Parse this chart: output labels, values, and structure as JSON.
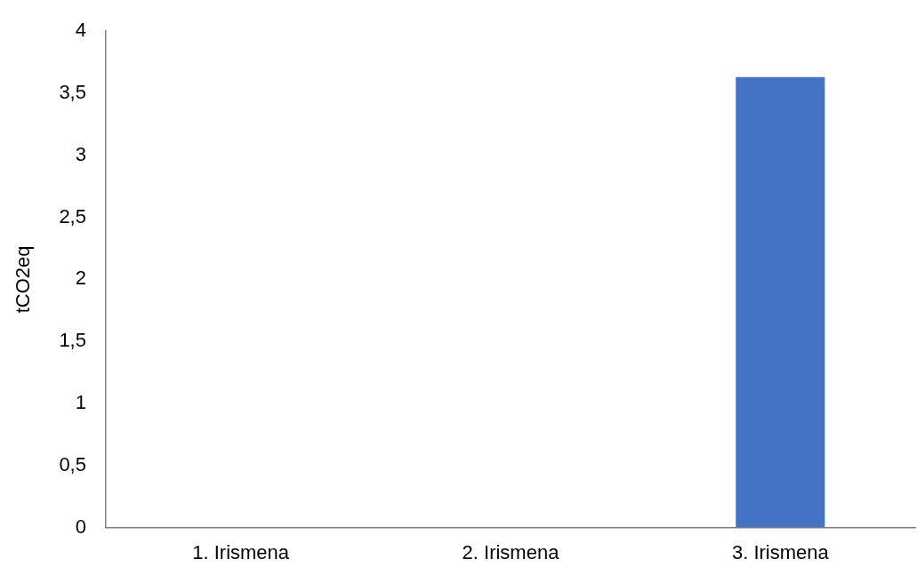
{
  "chart_data": {
    "type": "bar",
    "ylabel": "tCO2eq",
    "categories": [
      "1. Irismena",
      "2. Irismena",
      "3. Irismena"
    ],
    "values": [
      0,
      0,
      3.63
    ],
    "color": "#4472c4",
    "ylim": [
      0,
      4
    ],
    "yticks": [
      0,
      {
        "value": 0.5,
        "label": "0,5"
      },
      1,
      {
        "value": 1.5,
        "label": "1,5"
      },
      2,
      {
        "value": 2.5,
        "label": "2,5"
      },
      3,
      {
        "value": 3.5,
        "label": "3,5"
      },
      4
    ],
    "grid": false,
    "legend": false
  }
}
